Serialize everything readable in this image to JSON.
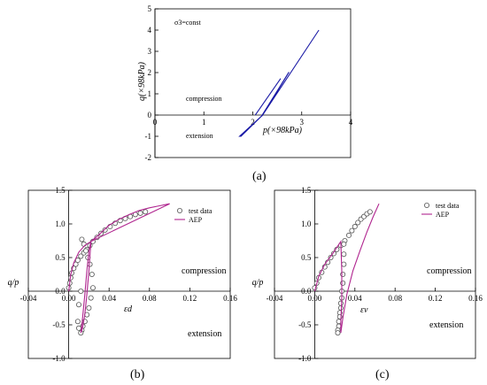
{
  "chart_data": [
    {
      "id": "a",
      "type": "line",
      "panel_label": "(a)",
      "xlabel": "p(×98kPa)",
      "ylabel": "q(×98kPa)",
      "xlim": [
        0,
        4
      ],
      "ylim": [
        -2,
        5
      ],
      "x_ticks": [
        "0",
        "1",
        "2",
        "3",
        "4"
      ],
      "y_ticks": [
        "-2",
        "-1",
        "0",
        "1",
        "2",
        "3",
        "4",
        "5"
      ],
      "annotations": [
        "σ3=const",
        "compression",
        "extension"
      ],
      "series": [
        {
          "color": "#1a1aa6",
          "x": [
            2.2,
            3.35,
            2.2,
            2.18,
            2.72,
            2.74,
            2.2
          ],
          "y": [
            0,
            4.0,
            0,
            -0.05,
            1.96,
            2.02,
            0
          ]
        },
        {
          "color": "#1a1aa6",
          "x": [
            2.2,
            1.76,
            1.73,
            2.18,
            2.2
          ],
          "y": [
            0,
            -1.0,
            -1.0,
            -0.05,
            0
          ]
        },
        {
          "color": "#1a1aa6",
          "x": [
            2.05,
            2.57
          ],
          "y": [
            0,
            1.72
          ]
        }
      ]
    },
    {
      "id": "b",
      "type": "scatter",
      "panel_label": "(b)",
      "xlabel": "εd",
      "ylabel": "q/p",
      "xlim": [
        -0.04,
        0.16
      ],
      "ylim": [
        -1.0,
        1.5
      ],
      "x_ticks": [
        "-0.04",
        "0.00",
        "0.04",
        "0.08",
        "0.12",
        "0.16"
      ],
      "y_ticks": [
        "-1.0",
        "-0.5",
        "0.0",
        "0.5",
        "1.0",
        "1.5"
      ],
      "annotations": [
        "compression",
        "extension"
      ],
      "legend": {
        "position": "top-right",
        "entries": [
          "test data",
          "AEP"
        ]
      },
      "series": [
        {
          "name": "test data",
          "marker": "circle",
          "x": [
            0.0,
            0.001,
            0.002,
            0.003,
            0.005,
            0.007,
            0.009,
            0.012,
            0.015,
            0.018,
            0.021,
            0.024,
            0.028,
            0.032,
            0.036,
            0.041,
            0.046,
            0.051,
            0.056,
            0.061,
            0.066,
            0.071,
            0.076,
            0.013,
            0.015,
            0.017,
            0.019,
            0.021,
            0.023,
            0.024,
            0.022,
            0.02,
            0.018,
            0.016,
            0.014,
            0.013,
            0.012,
            0.01,
            0.009,
            0.01,
            0.012
          ],
          "y": [
            0.05,
            0.12,
            0.2,
            0.27,
            0.34,
            0.4,
            0.46,
            0.52,
            0.57,
            0.62,
            0.68,
            0.74,
            0.8,
            0.86,
            0.91,
            0.96,
            1.01,
            1.05,
            1.08,
            1.11,
            1.14,
            1.16,
            1.18,
            0.77,
            0.7,
            0.6,
            0.5,
            0.4,
            0.25,
            0.05,
            -0.1,
            -0.25,
            -0.35,
            -0.45,
            -0.52,
            -0.58,
            -0.62,
            -0.55,
            -0.45,
            -0.2,
            0.0
          ]
        },
        {
          "name": "AEP",
          "color": "#b0258f",
          "x": [
            0.0,
            0.002,
            0.005,
            0.01,
            0.016,
            0.022,
            0.03,
            0.04,
            0.05,
            0.06,
            0.07,
            0.08,
            0.09,
            0.1,
            0.022,
            0.02,
            0.018,
            0.016,
            0.014,
            0.013,
            0.012,
            0.013,
            0.014,
            0.016,
            0.018,
            0.02,
            0.022
          ],
          "y": [
            0.0,
            0.25,
            0.42,
            0.58,
            0.68,
            0.74,
            0.84,
            0.98,
            1.07,
            1.14,
            1.2,
            1.24,
            1.27,
            1.3,
            0.74,
            0.3,
            -0.05,
            -0.35,
            -0.52,
            -0.58,
            -0.62,
            -0.5,
            -0.35,
            -0.05,
            0.3,
            0.6,
            0.74
          ]
        }
      ]
    },
    {
      "id": "c",
      "type": "scatter",
      "panel_label": "(c)",
      "xlabel": "εv",
      "ylabel": "q/p",
      "xlim": [
        -0.04,
        0.16
      ],
      "ylim": [
        -1.0,
        1.5
      ],
      "x_ticks": [
        "-0.04",
        "0.00",
        "0.04",
        "0.08",
        "0.12",
        "0.16"
      ],
      "y_ticks": [
        "-1.0",
        "-0.5",
        "0.0",
        "0.5",
        "1.0",
        "1.5"
      ],
      "annotations": [
        "compression",
        "extension"
      ],
      "legend": {
        "position": "top-right",
        "entries": [
          "test data",
          "AEP"
        ]
      },
      "series": [
        {
          "name": "test data",
          "marker": "circle",
          "x": [
            0.0,
            0.002,
            0.004,
            0.007,
            0.01,
            0.013,
            0.016,
            0.019,
            0.022,
            0.026,
            0.03,
            0.034,
            0.037,
            0.04,
            0.043,
            0.046,
            0.049,
            0.052,
            0.055,
            0.029,
            0.029,
            0.029,
            0.028,
            0.028,
            0.027,
            0.027,
            0.026,
            0.026,
            0.025,
            0.025,
            0.024,
            0.024,
            0.023,
            0.023
          ],
          "y": [
            0.05,
            0.12,
            0.2,
            0.28,
            0.36,
            0.43,
            0.5,
            0.56,
            0.62,
            0.68,
            0.75,
            0.83,
            0.9,
            0.96,
            1.02,
            1.07,
            1.11,
            1.15,
            1.18,
            0.7,
            0.55,
            0.4,
            0.25,
            0.12,
            0.0,
            -0.1,
            -0.18,
            -0.25,
            -0.32,
            -0.38,
            -0.45,
            -0.52,
            -0.58,
            -0.62
          ]
        },
        {
          "name": "AEP",
          "color": "#b0258f",
          "x": [
            0.0,
            0.004,
            0.01,
            0.018,
            0.026,
            0.027,
            0.027,
            0.026,
            0.026,
            0.028,
            0.032,
            0.038,
            0.045,
            0.052,
            0.058,
            0.064
          ],
          "y": [
            0.0,
            0.22,
            0.4,
            0.56,
            0.74,
            0.3,
            -0.1,
            -0.45,
            -0.62,
            -0.4,
            -0.05,
            0.3,
            0.6,
            0.88,
            1.1,
            1.3
          ]
        }
      ]
    }
  ]
}
